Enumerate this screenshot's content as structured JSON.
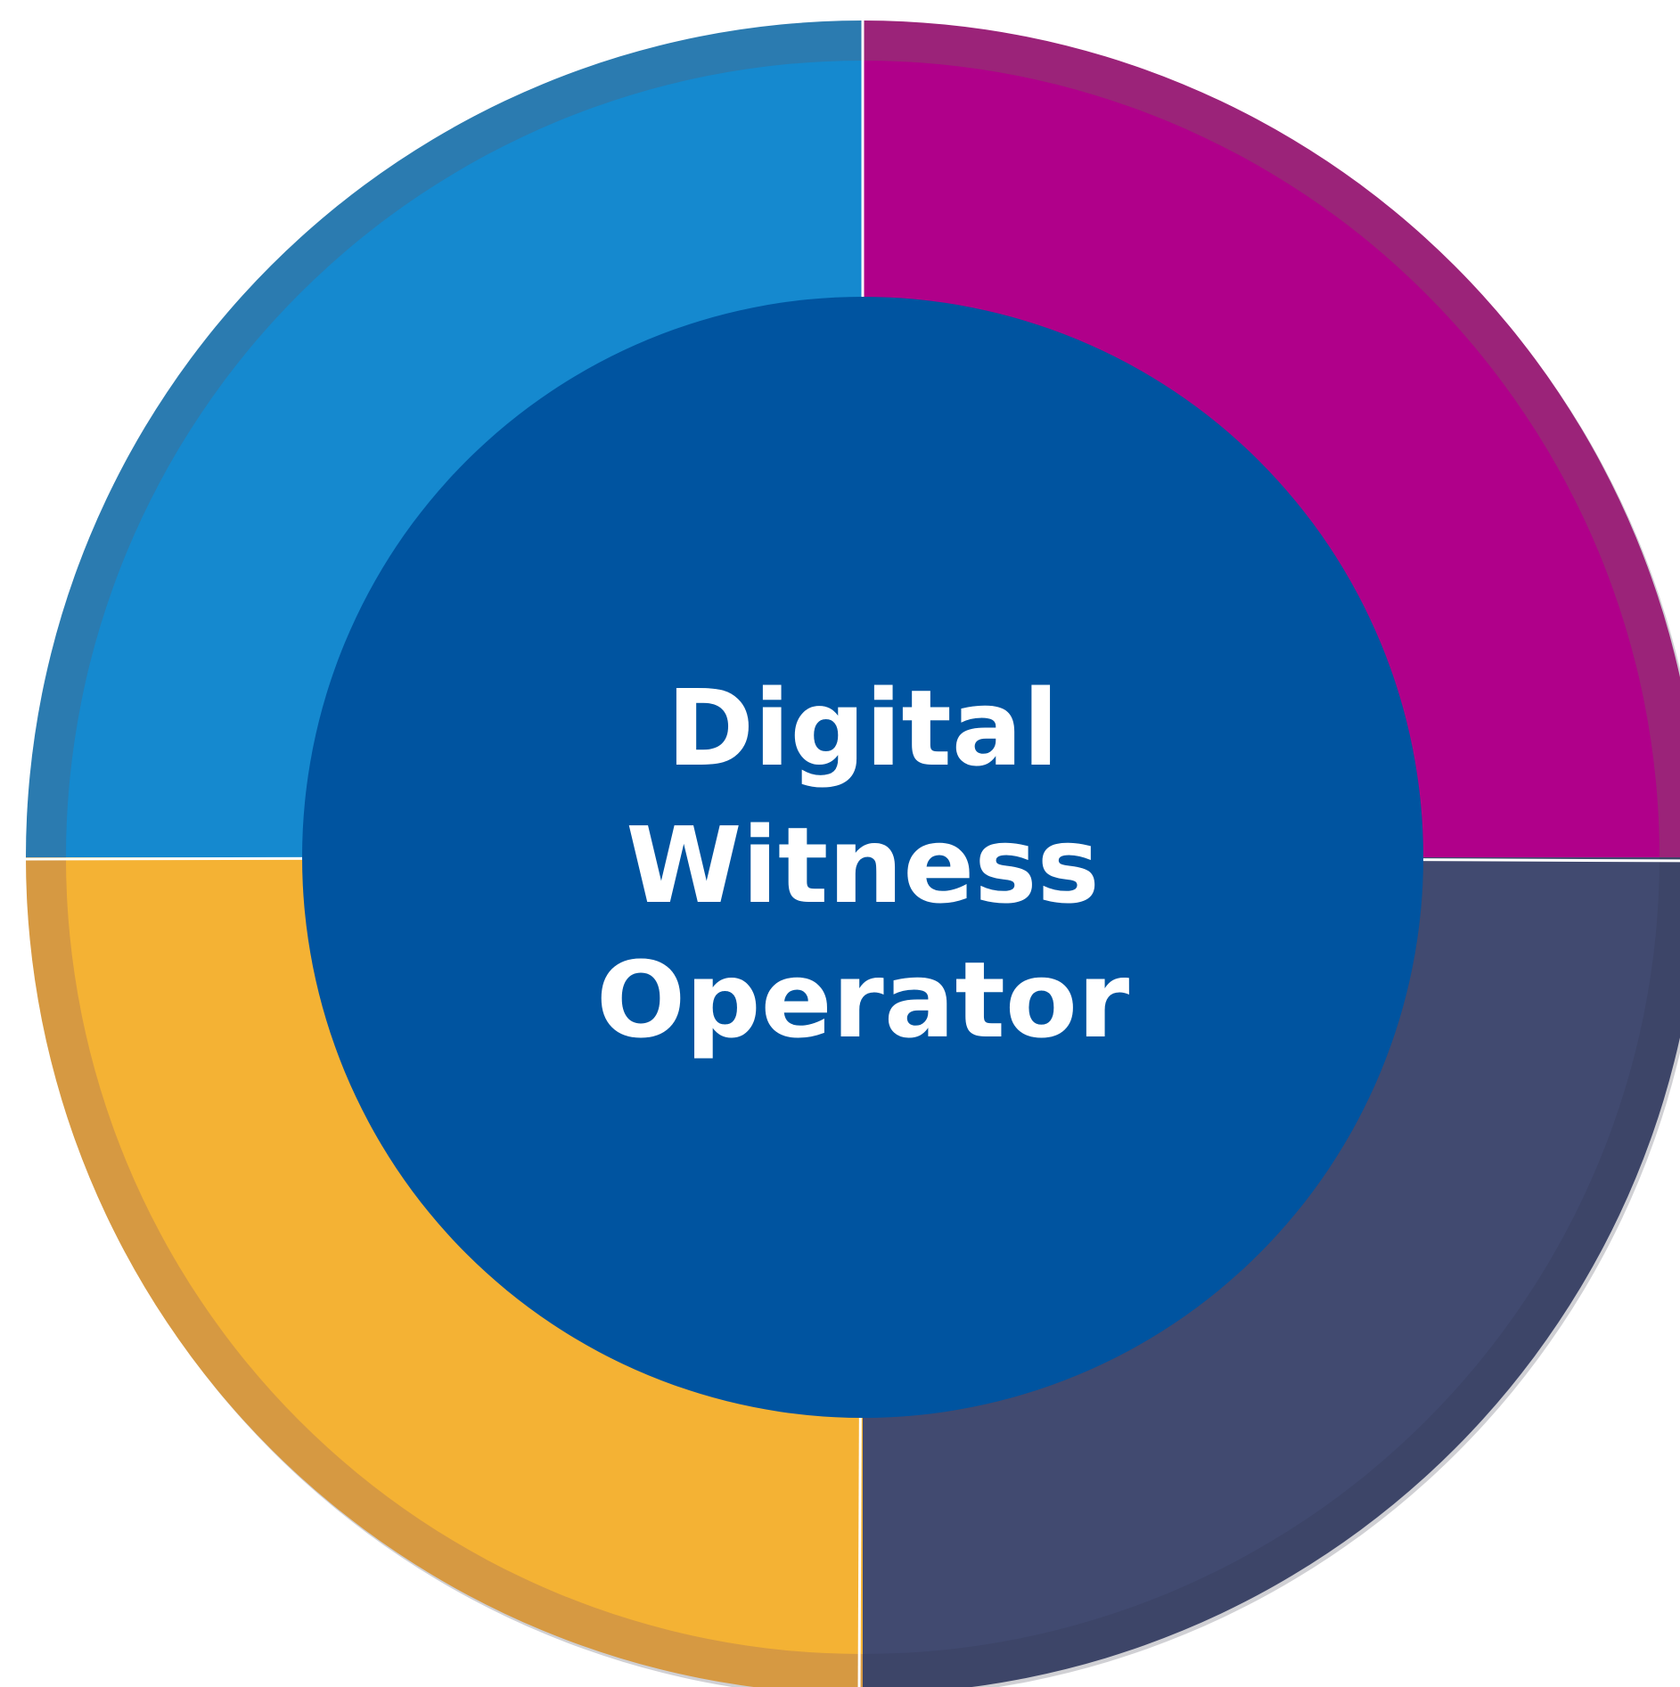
{
  "center": {
    "lines": [
      "Digital",
      "Witness",
      "Operator"
    ]
  }
}
